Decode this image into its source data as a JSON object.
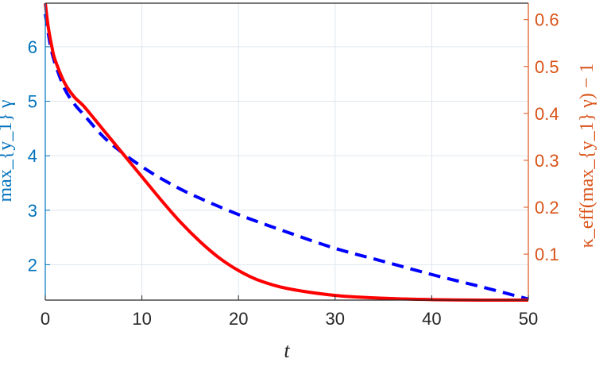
{
  "chart_data": {
    "type": "line",
    "title": "",
    "xlabel": "t",
    "ylabel_left": "max_{y_1} γ",
    "ylabel_right": "κ_eff(max_{y_1} γ) − 1",
    "xlim": [
      0,
      50
    ],
    "ylim_left": [
      1.35,
      6.8
    ],
    "ylim_right": [
      0.002,
      0.635
    ],
    "grid": true,
    "legend": "none",
    "x_ticks": [
      "0",
      "10",
      "20",
      "30",
      "40",
      "50"
    ],
    "y_left_ticks": [
      "2",
      "3",
      "4",
      "5",
      "6"
    ],
    "y_right_ticks": [
      "0.1",
      "0.2",
      "0.3",
      "0.4",
      "0.5",
      "0.6"
    ],
    "colors": {
      "left_axis": "#0072BD",
      "right_axis": "#D95319",
      "dashed_series": "#0000FF",
      "solid_series": "#FF0000",
      "grid": "#DFE6EE",
      "frame": "#262626"
    },
    "series": [
      {
        "axis": "left",
        "style": "dashed",
        "x": [
          0,
          0.5,
          1,
          2,
          3,
          4,
          6,
          8,
          10,
          12,
          15,
          20,
          25,
          30,
          35,
          40,
          45,
          50
        ],
        "y": [
          6.6,
          6.05,
          5.7,
          5.23,
          4.95,
          4.75,
          4.35,
          4.05,
          3.8,
          3.58,
          3.3,
          2.92,
          2.6,
          2.3,
          2.06,
          1.82,
          1.6,
          1.37
        ]
      },
      {
        "axis": "right",
        "style": "solid",
        "x": [
          0,
          0.3,
          0.7,
          1,
          2,
          3,
          4,
          6,
          8,
          10,
          12,
          14,
          16,
          18,
          20,
          22,
          25,
          30,
          35,
          40,
          45,
          50
        ],
        "y": [
          0.635,
          0.585,
          0.54,
          0.515,
          0.465,
          0.435,
          0.415,
          0.365,
          0.315,
          0.265,
          0.215,
          0.168,
          0.127,
          0.092,
          0.065,
          0.045,
          0.027,
          0.012,
          0.006,
          0.003,
          0.002,
          0.002
        ]
      }
    ]
  }
}
